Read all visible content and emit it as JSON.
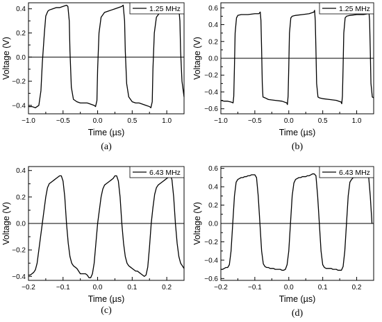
{
  "chart_data": [
    {
      "type": "line",
      "panel_label": "(a)",
      "xlabel": "Time (µs)",
      "ylabel": "Voltage (V)",
      "xlim": [
        -1.0,
        1.25
      ],
      "ylim": [
        -0.47,
        0.45
      ],
      "xticks": [
        -1.0,
        -0.5,
        0.0,
        0.5,
        1.0
      ],
      "xtick_labels": [
        "−1.0",
        "−0.5",
        "0.0",
        "0.5",
        "1.0"
      ],
      "yticks": [
        -0.4,
        -0.2,
        0.0,
        0.2,
        0.4
      ],
      "ytick_labels": [
        "−0.4",
        "−0.2",
        "0.0",
        "0.2",
        "0.4"
      ],
      "legend": "top-right",
      "series": [
        {
          "name": "1.25 MHz",
          "color": "#000000",
          "x": [
            -1.0,
            -0.95,
            -0.9,
            -0.85,
            -0.82,
            -0.8,
            -0.77,
            -0.75,
            -0.72,
            -0.7,
            -0.65,
            -0.6,
            -0.55,
            -0.5,
            -0.45,
            -0.43,
            -0.41,
            -0.4,
            -0.38,
            -0.35,
            -0.3,
            -0.25,
            -0.2,
            -0.15,
            -0.1,
            -0.05,
            -0.03,
            -0.01,
            0.0,
            0.02,
            0.05,
            0.1,
            0.15,
            0.2,
            0.25,
            0.3,
            0.35,
            0.37,
            0.39,
            0.4,
            0.42,
            0.45,
            0.5,
            0.55,
            0.6,
            0.65,
            0.7,
            0.75,
            0.77,
            0.79,
            0.8,
            0.82,
            0.85,
            0.9,
            0.95,
            1.0,
            1.05,
            1.1,
            1.15,
            1.17,
            1.19,
            1.2,
            1.22,
            1.25
          ],
          "y": [
            -0.41,
            -0.41,
            -0.42,
            -0.4,
            -0.28,
            -0.05,
            0.2,
            0.34,
            0.38,
            0.39,
            0.4,
            0.41,
            0.41,
            0.42,
            0.43,
            0.42,
            0.3,
            0.05,
            -0.25,
            -0.35,
            -0.37,
            -0.38,
            -0.38,
            -0.38,
            -0.39,
            -0.4,
            -0.41,
            -0.36,
            -0.1,
            0.2,
            0.33,
            0.37,
            0.38,
            0.39,
            0.4,
            0.41,
            0.42,
            0.43,
            0.3,
            0.05,
            -0.22,
            -0.33,
            -0.37,
            -0.38,
            -0.38,
            -0.39,
            -0.4,
            -0.41,
            -0.42,
            -0.37,
            -0.1,
            0.2,
            0.33,
            0.37,
            0.38,
            0.39,
            0.4,
            0.41,
            0.42,
            0.43,
            0.3,
            0.05,
            -0.2,
            -0.33
          ]
        }
      ]
    },
    {
      "type": "line",
      "panel_label": "(b)",
      "xlabel": "Time (µs)",
      "ylabel": "Voltage (V)",
      "xlim": [
        -1.0,
        1.25
      ],
      "ylim": [
        -0.66,
        0.66
      ],
      "xticks": [
        -1.0,
        -0.5,
        0.0,
        0.5,
        1.0
      ],
      "xtick_labels": [
        "−1.0",
        "−0.5",
        "0.0",
        "0.5",
        "1.0"
      ],
      "yticks": [
        -0.6,
        -0.4,
        -0.2,
        0.0,
        0.2,
        0.4,
        0.6
      ],
      "ytick_labels": [
        "−0.6",
        "−0.4",
        "−0.2",
        "0.0",
        "0.2",
        "0.4",
        "0.6"
      ],
      "legend": "top-right",
      "series": [
        {
          "name": "1.25 MHz",
          "color": "#000000",
          "x": [
            -1.0,
            -0.95,
            -0.9,
            -0.85,
            -0.82,
            -0.81,
            -0.8,
            -0.79,
            -0.77,
            -0.75,
            -0.7,
            -0.6,
            -0.5,
            -0.44,
            -0.42,
            -0.41,
            -0.4,
            -0.39,
            -0.38,
            -0.35,
            -0.3,
            -0.2,
            -0.1,
            -0.03,
            -0.02,
            -0.01,
            0.0,
            0.01,
            0.03,
            0.05,
            0.1,
            0.2,
            0.3,
            0.37,
            0.38,
            0.39,
            0.4,
            0.41,
            0.43,
            0.45,
            0.5,
            0.6,
            0.7,
            0.77,
            0.78,
            0.79,
            0.8,
            0.81,
            0.83,
            0.85,
            0.9,
            1.0,
            1.1,
            1.17,
            1.18,
            1.19,
            1.2,
            1.21,
            1.23,
            1.25
          ],
          "y": [
            -0.5,
            -0.51,
            -0.51,
            -0.52,
            -0.53,
            -0.45,
            -0.1,
            0.3,
            0.48,
            0.51,
            0.52,
            0.52,
            0.53,
            0.53,
            0.55,
            0.45,
            0.1,
            -0.3,
            -0.46,
            -0.47,
            -0.49,
            -0.5,
            -0.51,
            -0.53,
            -0.55,
            -0.45,
            -0.1,
            0.3,
            0.48,
            0.5,
            0.51,
            0.52,
            0.53,
            0.55,
            0.57,
            0.45,
            0.1,
            -0.3,
            -0.46,
            -0.47,
            -0.48,
            -0.49,
            -0.5,
            -0.52,
            -0.54,
            -0.45,
            -0.1,
            0.3,
            0.48,
            0.5,
            0.51,
            0.52,
            0.52,
            0.53,
            0.55,
            0.45,
            0.1,
            -0.3,
            -0.46,
            -0.47
          ]
        }
      ]
    },
    {
      "type": "line",
      "panel_label": "(c)",
      "xlabel": "Time (µs)",
      "ylabel": "Voltage (V)",
      "xlim": [
        -0.2,
        0.25
      ],
      "ylim": [
        -0.43,
        0.43
      ],
      "xticks": [
        -0.2,
        -0.1,
        0.0,
        0.1,
        0.2
      ],
      "xtick_labels": [
        "−0.2",
        "−0.1",
        "0.0",
        "0.1",
        "0.2"
      ],
      "yticks": [
        -0.4,
        -0.2,
        0.0,
        0.2,
        0.4
      ],
      "ytick_labels": [
        "−0.4",
        "−0.2",
        "0.0",
        "0.2",
        "0.4"
      ],
      "legend": "top-right",
      "series": [
        {
          "name": "6.43 MHz",
          "color": "#000000",
          "x": [
            -0.2,
            -0.195,
            -0.19,
            -0.185,
            -0.18,
            -0.175,
            -0.17,
            -0.165,
            -0.16,
            -0.155,
            -0.15,
            -0.145,
            -0.14,
            -0.135,
            -0.13,
            -0.125,
            -0.12,
            -0.115,
            -0.11,
            -0.105,
            -0.1,
            -0.095,
            -0.09,
            -0.085,
            -0.08,
            -0.075,
            -0.07,
            -0.065,
            -0.06,
            -0.055,
            -0.05,
            -0.045,
            -0.04,
            -0.035,
            -0.03,
            -0.025,
            -0.02,
            -0.015,
            -0.01,
            -0.005,
            0.0,
            0.005,
            0.01,
            0.015,
            0.02,
            0.025,
            0.03,
            0.035,
            0.04,
            0.045,
            0.05,
            0.055,
            0.06,
            0.065,
            0.07,
            0.075,
            0.08,
            0.085,
            0.09,
            0.095,
            0.1,
            0.105,
            0.11,
            0.115,
            0.12,
            0.125,
            0.13,
            0.135,
            0.14,
            0.145,
            0.15,
            0.155,
            0.16,
            0.165,
            0.17,
            0.175,
            0.18,
            0.185,
            0.19,
            0.195,
            0.2,
            0.205,
            0.21,
            0.215,
            0.22,
            0.225,
            0.23,
            0.235,
            0.24,
            0.245,
            0.25
          ],
          "y": [
            -0.39,
            -0.39,
            -0.38,
            -0.37,
            -0.35,
            -0.3,
            -0.2,
            -0.1,
            0.0,
            0.1,
            0.2,
            0.27,
            0.3,
            0.31,
            0.32,
            0.33,
            0.34,
            0.35,
            0.36,
            0.36,
            0.32,
            0.2,
            0.0,
            -0.15,
            -0.25,
            -0.3,
            -0.32,
            -0.33,
            -0.34,
            -0.36,
            -0.38,
            -0.38,
            -0.38,
            -0.38,
            -0.39,
            -0.41,
            -0.41,
            -0.38,
            -0.3,
            -0.15,
            0.0,
            0.1,
            0.2,
            0.26,
            0.29,
            0.3,
            0.31,
            0.32,
            0.33,
            0.34,
            0.36,
            0.36,
            0.32,
            0.2,
            0.0,
            -0.15,
            -0.25,
            -0.3,
            -0.32,
            -0.33,
            -0.34,
            -0.35,
            -0.36,
            -0.36,
            -0.37,
            -0.38,
            -0.39,
            -0.4,
            -0.39,
            -0.33,
            -0.18,
            0.0,
            0.12,
            0.22,
            0.27,
            0.29,
            0.3,
            0.31,
            0.32,
            0.33,
            0.34,
            0.35,
            0.37,
            0.33,
            0.2,
            0.0,
            -0.15,
            -0.25,
            -0.3,
            -0.32,
            -0.34
          ]
        }
      ]
    },
    {
      "type": "line",
      "panel_label": "(d)",
      "xlabel": "Time (µs)",
      "ylabel": "Voltage (V)",
      "xlim": [
        -0.2,
        0.25
      ],
      "ylim": [
        -0.62,
        0.62
      ],
      "xticks": [
        -0.2,
        -0.1,
        0.0,
        0.1,
        0.2
      ],
      "xtick_labels": [
        "−0.2",
        "−0.1",
        "0.0",
        "0.1",
        "0.2"
      ],
      "yticks": [
        -0.6,
        -0.4,
        -0.2,
        0.0,
        0.2,
        0.4,
        0.6
      ],
      "ytick_labels": [
        "−0.6",
        "−0.4",
        "−0.2",
        "0.0",
        "0.2",
        "0.4",
        "0.6"
      ],
      "legend": "top-right",
      "series": [
        {
          "name": "6.43 MHz",
          "color": "#000000",
          "x": [
            -0.2,
            -0.195,
            -0.19,
            -0.185,
            -0.18,
            -0.175,
            -0.17,
            -0.165,
            -0.16,
            -0.155,
            -0.15,
            -0.145,
            -0.14,
            -0.135,
            -0.13,
            -0.125,
            -0.12,
            -0.115,
            -0.11,
            -0.105,
            -0.1,
            -0.095,
            -0.09,
            -0.085,
            -0.08,
            -0.075,
            -0.07,
            -0.065,
            -0.06,
            -0.055,
            -0.05,
            -0.045,
            -0.04,
            -0.035,
            -0.03,
            -0.025,
            -0.02,
            -0.015,
            -0.01,
            -0.005,
            0.0,
            0.005,
            0.01,
            0.015,
            0.02,
            0.025,
            0.03,
            0.035,
            0.04,
            0.045,
            0.05,
            0.055,
            0.06,
            0.065,
            0.07,
            0.075,
            0.08,
            0.085,
            0.09,
            0.095,
            0.1,
            0.105,
            0.11,
            0.115,
            0.12,
            0.125,
            0.13,
            0.135,
            0.14,
            0.145,
            0.15,
            0.155,
            0.16,
            0.165,
            0.17,
            0.175,
            0.18,
            0.185,
            0.19,
            0.195,
            0.2,
            0.205,
            0.21,
            0.215,
            0.22,
            0.225,
            0.23,
            0.235,
            0.24,
            0.245
          ],
          "y": [
            -0.5,
            -0.5,
            -0.49,
            -0.48,
            -0.48,
            -0.45,
            -0.3,
            0.0,
            0.3,
            0.45,
            0.48,
            0.49,
            0.5,
            0.5,
            0.51,
            0.51,
            0.52,
            0.52,
            0.53,
            0.53,
            0.53,
            0.5,
            0.3,
            0.0,
            -0.3,
            -0.44,
            -0.47,
            -0.48,
            -0.48,
            -0.49,
            -0.49,
            -0.49,
            -0.5,
            -0.5,
            -0.5,
            -0.5,
            -0.51,
            -0.51,
            -0.5,
            -0.45,
            -0.3,
            0.0,
            0.3,
            0.44,
            0.48,
            0.49,
            0.5,
            0.5,
            0.51,
            0.51,
            0.51,
            0.52,
            0.52,
            0.53,
            0.54,
            0.54,
            0.52,
            0.3,
            0.0,
            -0.3,
            -0.45,
            -0.48,
            -0.49,
            -0.49,
            -0.49,
            -0.49,
            -0.5,
            -0.5,
            -0.5,
            -0.51,
            -0.51,
            -0.51,
            -0.47,
            -0.3,
            0.0,
            0.3,
            0.45,
            0.48,
            0.5,
            0.5,
            0.51,
            0.51,
            0.52,
            0.52,
            0.52,
            0.53,
            0.53,
            0.52,
            0.3,
            0.0
          ]
        }
      ]
    }
  ]
}
